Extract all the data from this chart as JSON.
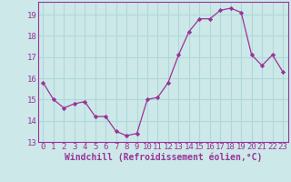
{
  "x": [
    0,
    1,
    2,
    3,
    4,
    5,
    6,
    7,
    8,
    9,
    10,
    11,
    12,
    13,
    14,
    15,
    16,
    17,
    18,
    19,
    20,
    21,
    22,
    23
  ],
  "y": [
    15.8,
    15.0,
    14.6,
    14.8,
    14.9,
    14.2,
    14.2,
    13.5,
    13.3,
    13.4,
    15.0,
    15.1,
    15.8,
    17.1,
    18.2,
    18.8,
    18.8,
    19.2,
    19.3,
    19.1,
    17.1,
    16.6,
    17.1,
    16.3
  ],
  "line_color": "#993399",
  "marker": "D",
  "marker_size": 2.2,
  "bg_color": "#cce8e8",
  "grid_color": "#b0d8d8",
  "ylim": [
    13,
    19.6
  ],
  "yticks": [
    13,
    14,
    15,
    16,
    17,
    18,
    19
  ],
  "xlim": [
    -0.5,
    23.5
  ],
  "xlabel": "Windchill (Refroidissement éolien,°C)",
  "xlabel_fontsize": 7,
  "tick_fontsize": 6.5,
  "tick_color": "#993399",
  "label_color": "#993399",
  "spine_color": "#993399"
}
